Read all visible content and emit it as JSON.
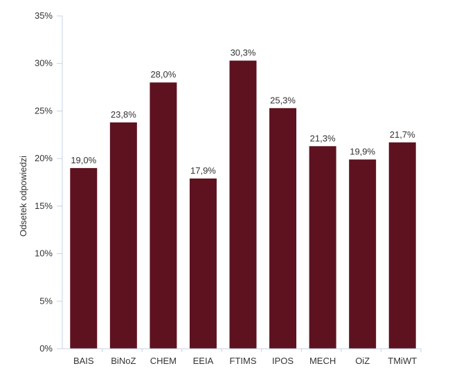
{
  "chart_data": {
    "type": "bar",
    "categories": [
      "BAIS",
      "BiNoZ",
      "CHEM",
      "EEIA",
      "FTIMS",
      "IPOS",
      "MECH",
      "OiZ",
      "TMiWT"
    ],
    "values": [
      19.0,
      23.8,
      28.0,
      17.9,
      30.3,
      25.3,
      21.3,
      19.9,
      21.7
    ],
    "data_labels": [
      "19,0%",
      "23,8%",
      "28,0%",
      "17,9%",
      "30,3%",
      "25,3%",
      "21,3%",
      "19,9%",
      "21,7%"
    ],
    "ylabel": "Odsetek odpowiedzi",
    "xlabel": "",
    "ylim": [
      0,
      35
    ],
    "yticks": [
      0,
      5,
      10,
      15,
      20,
      25,
      30,
      35
    ],
    "ytick_labels": [
      "0%",
      "5%",
      "10%",
      "15%",
      "20%",
      "25%",
      "30%",
      "35%"
    ],
    "grid": false,
    "legend": "none",
    "bar_color": "#5e1220",
    "axis_color": "#c6d3e3"
  }
}
